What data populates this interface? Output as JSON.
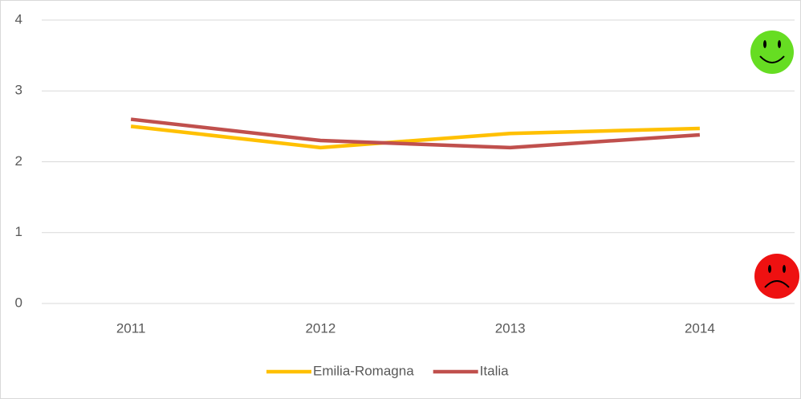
{
  "chart_data": {
    "type": "line",
    "categories": [
      "2011",
      "2012",
      "2013",
      "2014"
    ],
    "series": [
      {
        "name": "Emilia-Romagna",
        "color": "#ffc000",
        "values": [
          2.5,
          2.2,
          2.4,
          2.47
        ]
      },
      {
        "name": "Italia",
        "color": "#c0504d",
        "values": [
          2.6,
          2.3,
          2.2,
          2.38
        ]
      }
    ],
    "ylim": [
      0,
      4
    ],
    "yticks": [
      0,
      1,
      2,
      3,
      4
    ],
    "grid": true,
    "legend": "bottom"
  }
}
